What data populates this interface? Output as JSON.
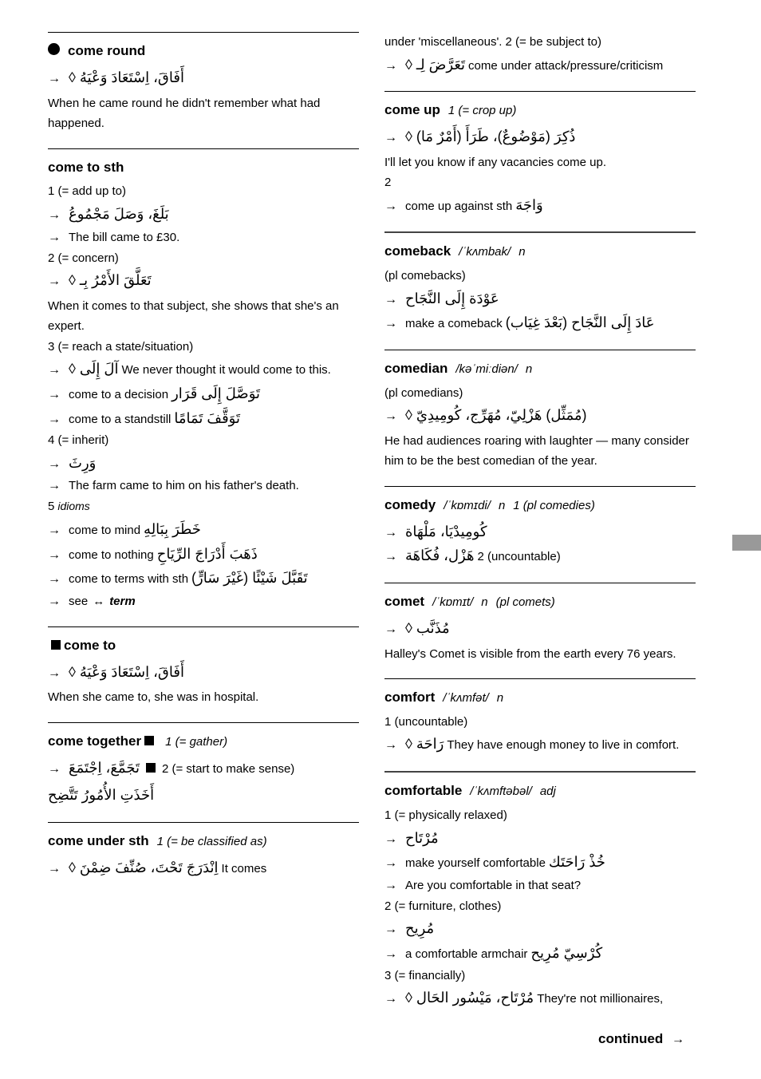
{
  "left": [
    {
      "term_prefix_icon": "bullet",
      "term_main": "come round",
      "lines": [
        {
          "arrow": true,
          "text": "أَفَاقَ، اِسْتَعَادَ وَعْيَهُ ◊ ",
          "extra": "When he came round he didn't remember what had happened.",
          "tag": ""
        }
      ]
    },
    {
      "term_main": "come to sth",
      "lines": [
        {
          "text": "1 (= add up to)"
        },
        {
          "arrow": true,
          "text": "بَلَغَ، وَصَلَ مَجْمُوعُ"
        },
        {
          "arrow": true,
          "extra": "The bill came to £30."
        },
        {
          "text": "2 (= concern)"
        },
        {
          "arrow": true,
          "text": "تَعَلَّقَ الأَمْرُ بِـ ◊ ",
          "extra": "When it comes to that subject, she shows that she's an expert."
        },
        {
          "text": "3 (= reach a state/situation)"
        },
        {
          "arrow": true,
          "text": "آلَ إِلَى ◊ ",
          "extra": "We never thought it would come to this."
        },
        {
          "arrow": true,
          "extra": "come to a decision",
          "rtl": "تَوَصَّلَ إِلَى قَرَار"
        },
        {
          "arrow": true,
          "extra": "come to a standstill",
          "rtl": "تَوَقَّفَ تَمَامًا"
        },
        {
          "text": "4 (= inherit)"
        },
        {
          "arrow": true,
          "text": "وَرِثَ"
        },
        {
          "arrow": true,
          "extra": "The farm came to him on his father's death."
        },
        {
          "text": "5 ",
          "tag_prefix": "idioms"
        },
        {
          "arrow": true,
          "extra": "come to mind",
          "rtl": "خَطَرَ بِبَالِهِ"
        },
        {
          "arrow": true,
          "extra": "come to nothing",
          "rtl": "ذَهَبَ أَدْرَاجَ الرِّيَاحِ"
        },
        {
          "arrow": true,
          "extra": "come to terms with sth",
          "rtl": "تَقَبَّلَ شَيْئًا (غَيْرَ سَارٍّ)"
        },
        {
          "arrow": true,
          "text": "see ",
          "darrow": true,
          "wordref": "term"
        }
      ]
    },
    {
      "term_prefix_icon": "square",
      "term_main": "come to",
      "lines": [
        {
          "arrow": true,
          "text": "أَفَاقَ، اِسْتَعَادَ وَعْيَهُ ◊ ",
          "extra": "When she came to, she was in hospital."
        }
      ]
    },
    {
      "term_main": "come together",
      "term_suffix_icon": "square",
      "term_tail": "1 (= gather)",
      "lines": [
        {
          "arrow": true,
          "text": "تَجَمَّعَ، اِجْتَمَعَ ",
          "sq_inline": true,
          "extra": " 2 (= start to make sense)",
          "rtl": "أَخَذَتِ الأُمُورُ تَتَّضِح"
        }
      ]
    },
    {
      "term_main": "come under sth",
      "term_tail": "1 (= be classified as)",
      "lines": [
        {
          "arrow": true,
          "text": "اِنْدَرَجَ تَحْتَ، صُنِّفَ ضِمْنَ ◊ ",
          "extra": "It comes"
        }
      ]
    }
  ],
  "right": [
    {
      "no_top_border": true,
      "lines": [
        {
          "extra": "under 'miscellaneous'.",
          "text": " 2 (= be subject to)"
        },
        {
          "arrow": true,
          "text": "تَعَرَّضَ لِـ ◊ ",
          "extra": "come under attack/pressure/criticism"
        }
      ]
    },
    {
      "term_main": "come up",
      "term_tail": "1 (= crop up)",
      "lines": [
        {
          "arrow": true,
          "text": "ذُكِرَ (مَوْضُوعٌ)، طَرَأَ (أَمْرٌ مَا) ◊ ",
          "extra": "I'll let you know if any vacancies come up."
        },
        {
          "text": "2"
        },
        {
          "arrow": true,
          "extra": "come up against sth",
          "rtl": "وَاجَهَ"
        }
      ]
    },
    {
      "bold_top": true,
      "term_main": "comeback",
      "phon": " /ˈkʌmbak/",
      "pos": "n",
      "lines": [
        {
          "text": "(pl comebacks)"
        },
        {
          "arrow": true,
          "text": "عَوْدَة إِلَى النَّجَاح"
        },
        {
          "arrow": true,
          "extra": "make a comeback",
          "rtl": "عَادَ إِلَى النَّجَاح (بَعْدَ غِيَاب)"
        }
      ]
    },
    {
      "term_main": "comedian",
      "phon": " /kəˈmiːdiən/",
      "pos": "n",
      "lines": [
        {
          "text": "(pl comedians)"
        },
        {
          "arrow": true,
          "text": "(مُمَثِّل) هَزْلِيّ، مُهَرِّج، كُومِيدِيّ ◊ ",
          "extra": "He had audiences roaring with laughter — many consider him to be the best comedian of the year."
        }
      ]
    },
    {
      "term_main": "comedy",
      "phon": " /ˈkɒmɪdi/",
      "pos": "n",
      "term_tail": "1 (pl comedies)",
      "lines": [
        {
          "arrow": true,
          "text": "كُومِيدْيَا، مَلْهَاة"
        },
        {
          "arrow": true,
          "text": "هَزْل، فُكَاهَة",
          "extra_pre": " 2 (uncountable) "
        }
      ]
    },
    {
      "term_main": "comet",
      "phon": " /ˈkɒmɪt/",
      "pos": "n",
      "term_tail": "(pl comets)",
      "lines": [
        {
          "arrow": true,
          "text": "مُذَنَّب ◊ ",
          "extra": "Halley's Comet is visible from the earth every 76 years."
        }
      ]
    },
    {
      "term_main": "comfort",
      "phon": " /ˈkʌmfət/",
      "pos": "n",
      "lines": [
        {
          "text": "1 (uncountable)"
        },
        {
          "arrow": true,
          "text": "رَاحَة ◊ ",
          "extra": "They have enough money to live in comfort."
        }
      ]
    },
    {
      "bold_top": true,
      "term_main": "comfortable",
      "phon": " /ˈkʌmftəbəl/",
      "pos": "adj",
      "lines": [
        {
          "text": "1 (= physically relaxed)"
        },
        {
          "arrow": true,
          "text": "مُرْتَاح"
        },
        {
          "arrow": true,
          "extra": "make yourself comfortable",
          "rtl": "خُذْ رَاحَتَك"
        },
        {
          "arrow": true,
          "extra": "Are you comfortable in that seat?"
        },
        {
          "text": "2 (= furniture, clothes)"
        },
        {
          "arrow": true,
          "text": "مُرِيح"
        },
        {
          "arrow": true,
          "extra": "a comfortable armchair",
          "rtl": "كُرْسِيّ مُرِيح"
        },
        {
          "text": "3 (= financially)"
        },
        {
          "arrow": true,
          "text": "مُرْتَاح، مَيْسُور الحَال ◊ ",
          "extra": "They're not millionaires,"
        }
      ]
    }
  ],
  "continued": "continued"
}
